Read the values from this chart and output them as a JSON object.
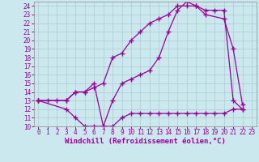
{
  "xlabel": "Windchill (Refroidissement éolien,°C)",
  "background_color": "#cce8ef",
  "grid_color": "#aacccc",
  "line_color": "#990099",
  "xlim": [
    -0.5,
    23.5
  ],
  "ylim": [
    10,
    24.5
  ],
  "xticks": [
    0,
    1,
    2,
    3,
    4,
    5,
    6,
    7,
    8,
    9,
    10,
    11,
    12,
    13,
    14,
    15,
    16,
    17,
    18,
    19,
    20,
    21,
    22,
    23
  ],
  "yticks": [
    10,
    11,
    12,
    13,
    14,
    15,
    16,
    17,
    18,
    19,
    20,
    21,
    22,
    23,
    24
  ],
  "line1_x": [
    0,
    1,
    2,
    3,
    4,
    5,
    6,
    7,
    8,
    9,
    10,
    11,
    12,
    13,
    14,
    15,
    16,
    17,
    18,
    19,
    20,
    21,
    22
  ],
  "line1_y": [
    13,
    13,
    13,
    13,
    14,
    14,
    14.5,
    15,
    18,
    18.5,
    20,
    21,
    22,
    22.5,
    23,
    24,
    24,
    24,
    23.5,
    23.5,
    23.5,
    13,
    12
  ],
  "line2_x": [
    0,
    3,
    4,
    5,
    6,
    7,
    8,
    9,
    10,
    11,
    12,
    13,
    14,
    15,
    16,
    17,
    18,
    19,
    20,
    21,
    22
  ],
  "line2_y": [
    13,
    12,
    11,
    10,
    10,
    10,
    10,
    11,
    11.5,
    11.5,
    11.5,
    11.5,
    11.5,
    11.5,
    11.5,
    11.5,
    11.5,
    11.5,
    11.5,
    12,
    12
  ],
  "line3_x": [
    0,
    3,
    4,
    5,
    6,
    7,
    8,
    9,
    10,
    11,
    12,
    13,
    14,
    15,
    16,
    17,
    18,
    20,
    21,
    22
  ],
  "line3_y": [
    13,
    13,
    14,
    14,
    15,
    10,
    13,
    15,
    15.5,
    16,
    16.5,
    18,
    21,
    23.5,
    24.5,
    24,
    23,
    22.5,
    19,
    12.5
  ],
  "xlabel_fontsize": 6.5,
  "tick_fontsize": 5.5
}
